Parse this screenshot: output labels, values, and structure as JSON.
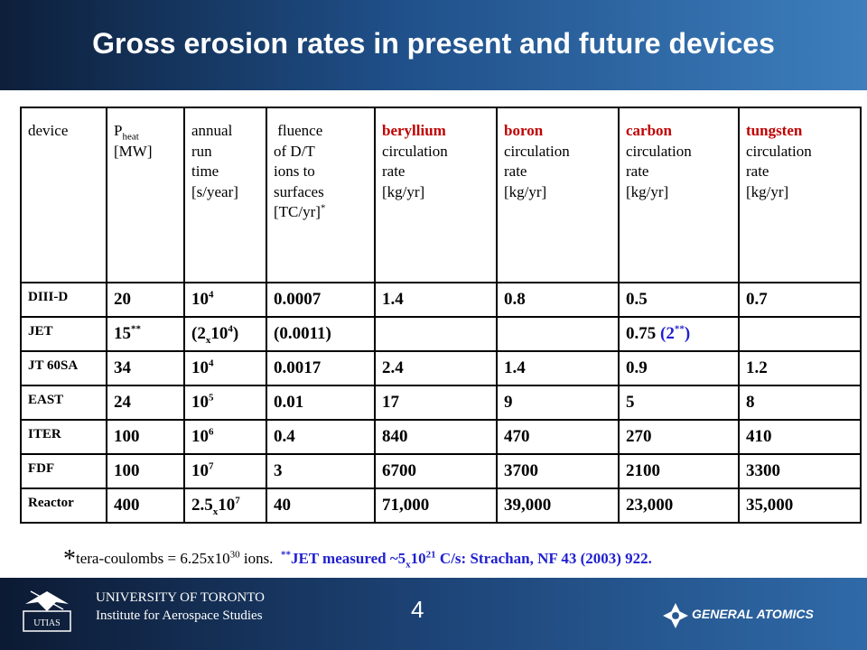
{
  "title": "Gross erosion rates in present and future devices",
  "table": {
    "headers": {
      "device": "device",
      "pheat_main": "P",
      "pheat_sub": "heat",
      "pheat_unit": "[MW]",
      "runtime": [
        "annual",
        "run",
        "time",
        "[s/year]"
      ],
      "fluence": [
        " fluence",
        "of D/T",
        "ions to",
        "surfaces"
      ],
      "fluence_unit": "[TC/yr]",
      "fluence_sup": "*",
      "be_name": "beryllium",
      "b_name": "boron",
      "c_name": "carbon",
      "w_name": "tungsten",
      "rate_word1": "circulation",
      "rate_word2": "rate",
      "rate_unit": "[kg/yr]"
    },
    "rows": [
      {
        "device": "DIII-D",
        "pheat": "20",
        "runtime_base": "10",
        "runtime_exp": "4",
        "fluence": "0.0007",
        "be": "1.4",
        "b": "0.8",
        "c": "0.5",
        "w": "0.7"
      },
      {
        "device": "JET",
        "pheat": "15",
        "pheat_sup": "**",
        "runtime_text": "(2",
        "runtime_x": "x",
        "runtime_base": "10",
        "runtime_exp": "4",
        "runtime_close": ")",
        "fluence": "(0.0011)",
        "be": "",
        "b": "",
        "c": "0.75",
        "c_extra": "(2",
        "c_extra_sup": "**",
        "c_extra_close": ")",
        "w": ""
      },
      {
        "device": "JT 60SA",
        "pheat": "34",
        "runtime_base": "10",
        "runtime_exp": "4",
        "fluence": "0.0017",
        "be": "2.4",
        "b": "1.4",
        "c": "0.9",
        "w": "1.2"
      },
      {
        "device": "EAST",
        "pheat": "24",
        "runtime_base": "10",
        "runtime_exp": "5",
        "fluence": "0.01",
        "be": "17",
        "b": "9",
        "c": "5",
        "w": "8"
      },
      {
        "device": "ITER",
        "pheat": "100",
        "runtime_base": "10",
        "runtime_exp": "6",
        "fluence": "0.4",
        "be": "840",
        "b": "470",
        "c": "270",
        "w": "410"
      },
      {
        "device": "FDF",
        "pheat": "100",
        "runtime_base": "10",
        "runtime_exp": "7",
        "fluence": "3",
        "be": "6700",
        "b": "3700",
        "c": "2100",
        "w": "3300"
      },
      {
        "device": "Reactor",
        "pheat": "400",
        "runtime_text": "2.5",
        "runtime_x": "x",
        "runtime_base": "10",
        "runtime_exp": "7",
        "fluence": "40",
        "be": "71,000",
        "b": "39,000",
        "c": "23,000",
        "w": "35,000"
      }
    ]
  },
  "footnote": {
    "star": "*",
    "text1": "tera-coulombs = 6.25x10",
    "exp1": "30",
    "text2": " ions.  ",
    "jet_sup": "**",
    "jet1": "JET measured ~5",
    "jet_x": "x",
    "jet2": "10",
    "jet_exp": "21",
    "jet3": " C/s: Strachan, NF 43 (2003) 922."
  },
  "footer": {
    "university": "UNIVERSITY OF TORONTO",
    "institute": "Institute for Aerospace Studies",
    "page_number": "4",
    "logo_left_text": "UTIAS",
    "logo_right_text": "GENERAL ATOMICS"
  },
  "colors": {
    "header_gradient_start": "#0d1f3a",
    "header_gradient_end": "#3d7ebd",
    "element_name_red": "#c00000",
    "jet_blue": "#1f1fd0"
  }
}
